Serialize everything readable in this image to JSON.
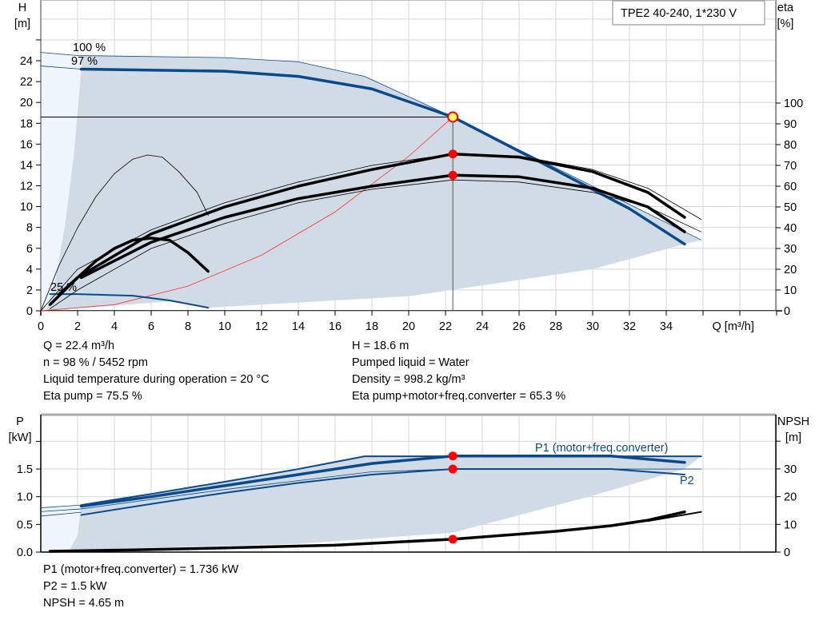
{
  "chart_data": [
    {
      "type": "line",
      "title": "TPE2 40-240, 1*230 V",
      "xlabel": "Q [m³/h]",
      "ylabel": "H\n[m]",
      "y2label": "eta\n[%]",
      "xlim": [
        0,
        40
      ],
      "ylim": [
        0,
        29.8
      ],
      "y2lim": [
        0,
        114.6
      ],
      "xticks": [
        0,
        2,
        4,
        6,
        8,
        10,
        12,
        14,
        16,
        18,
        20,
        22,
        24,
        26,
        28,
        30,
        32,
        34
      ],
      "yticks": [
        0,
        2,
        4,
        6,
        8,
        10,
        12,
        14,
        16,
        18,
        20,
        22,
        24
      ],
      "y2ticks": [
        0,
        10,
        20,
        30,
        40,
        50,
        60,
        70,
        80,
        90,
        100
      ],
      "grid": true,
      "colors": {
        "curve": "#0a4a8a",
        "area": "#d0dbe6",
        "area_light": "#eef5fc",
        "eta": "#000000",
        "system": "#ff3030",
        "point": "#ff0000",
        "op_point": "#ffff66"
      },
      "annotations": [
        "100 %",
        "97 %",
        "25 %"
      ],
      "series": [
        {
          "axis": "H",
          "style": "thin-blue",
          "points": [
            [
              0,
              24.8
            ],
            [
              2,
              24.5
            ],
            [
              10,
              24.3
            ],
            [
              14,
              23.9
            ],
            [
              17.6,
              22.5
            ],
            [
              22.4,
              18.6
            ],
            [
              35.9,
              6.8
            ]
          ]
        },
        {
          "axis": "H",
          "style": "thin-blue",
          "points": [
            [
              0,
              23.5
            ],
            [
              2.2,
              23.2
            ]
          ]
        },
        {
          "axis": "H",
          "style": "thick-blue",
          "points": [
            [
              2.2,
              23.2
            ],
            [
              10,
              23.0
            ],
            [
              14,
              22.5
            ],
            [
              18,
              21.3
            ],
            [
              22.4,
              18.6
            ],
            [
              28,
              13.5
            ],
            [
              32,
              9.8
            ],
            [
              35,
              6.4
            ]
          ]
        },
        {
          "axis": "H",
          "style": "blue",
          "points": [
            [
              0.5,
              1.6
            ],
            [
              2,
              1.6
            ],
            [
              5,
              1.45
            ],
            [
              7,
              1.0
            ],
            [
              9.1,
              0.3
            ]
          ]
        },
        {
          "axis": "eta",
          "style": "thin-black",
          "points": [
            [
              0,
              0
            ],
            [
              1,
              22
            ],
            [
              2,
              40
            ],
            [
              3,
              55
            ],
            [
              4,
              66
            ],
            [
              5,
              73
            ],
            [
              5.8,
              75
            ],
            [
              6.6,
              74
            ],
            [
              7.5,
              67
            ],
            [
              8.5,
              57
            ],
            [
              9.1,
              46
            ]
          ]
        },
        {
          "axis": "eta",
          "style": "thick-black",
          "points": [
            [
              1,
              8
            ],
            [
              2,
              16
            ],
            [
              3,
              24
            ],
            [
              4,
              30
            ],
            [
              5,
              34
            ],
            [
              6,
              35
            ],
            [
              7,
              34
            ],
            [
              8,
              28
            ],
            [
              9.1,
              19
            ]
          ]
        },
        {
          "axis": "eta",
          "style": "thin-black",
          "points": [
            [
              0,
              0
            ],
            [
              2,
              20
            ],
            [
              6,
              39
            ],
            [
              10,
              52
            ],
            [
              14,
              62
            ],
            [
              18,
              70
            ],
            [
              22.4,
              75.5
            ],
            [
              26,
              74.5
            ],
            [
              30,
              68
            ],
            [
              33,
              59
            ],
            [
              35.9,
              44
            ]
          ]
        },
        {
          "axis": "eta",
          "style": "thick-black",
          "points": [
            [
              0.5,
              3
            ],
            [
              2,
              16
            ],
            [
              6,
              37
            ],
            [
              10,
              50
            ],
            [
              14,
              60
            ],
            [
              18,
              68
            ],
            [
              22.4,
              75.5
            ],
            [
              26,
              74
            ],
            [
              30,
              67
            ],
            [
              33,
              57
            ],
            [
              35,
              45
            ]
          ]
        },
        {
          "axis": "eta",
          "style": "thick-black",
          "points": [
            [
              2.2,
              16
            ],
            [
              6,
              33
            ],
            [
              10,
              45
            ],
            [
              14,
              54
            ],
            [
              18,
              60
            ],
            [
              22.4,
              65.3
            ],
            [
              26,
              64.5
            ],
            [
              30,
              59
            ],
            [
              33,
              50
            ],
            [
              35,
              38
            ]
          ]
        },
        {
          "axis": "eta",
          "style": "thin-black",
          "points": [
            [
              0.5,
              1
            ],
            [
              2,
              10
            ],
            [
              6,
              30
            ],
            [
              10,
              42
            ],
            [
              14,
              52
            ],
            [
              18,
              58.5
            ],
            [
              22.4,
              63
            ],
            [
              26,
              62
            ],
            [
              30,
              57
            ],
            [
              33,
              50
            ],
            [
              35.9,
              38
            ]
          ]
        }
      ],
      "system_curve": {
        "points": [
          [
            0,
            0
          ],
          [
            4,
            0.59
          ],
          [
            8,
            2.37
          ],
          [
            12,
            5.34
          ],
          [
            16,
            9.49
          ],
          [
            20,
            14.83
          ],
          [
            22.4,
            18.6
          ]
        ]
      },
      "area_lower": [
        [
          0.3,
          0
        ],
        [
          0.8,
          3
        ],
        [
          1.3,
          8
        ],
        [
          1.8,
          15
        ],
        [
          2.2,
          23.2
        ]
      ],
      "area_bottom": [
        [
          9.1,
          0.3
        ],
        [
          20,
          1.4
        ],
        [
          30,
          4.0
        ],
        [
          35,
          6.4
        ]
      ],
      "operating_point": {
        "Q": 22.4,
        "H": 18.6,
        "eta_pump": 75.5,
        "eta_total": 65.3
      }
    },
    {
      "type": "line",
      "xlabel": "",
      "ylabel": "P\n[kW]",
      "y2label": "NPSH\n[m]",
      "xlim": [
        0,
        40
      ],
      "ylim": [
        0,
        2.5
      ],
      "y2lim": [
        0,
        50
      ],
      "yticks": [
        "0.0",
        "0.5",
        "1.0",
        "1.5"
      ],
      "y2ticks": [
        0,
        10,
        20,
        30
      ],
      "grid": true,
      "legend_labels": [
        "P1 (motor+freq.converter)",
        "P2"
      ],
      "series": [
        {
          "axis": "P",
          "style": "thin-blue",
          "points": [
            [
              0,
              0.8
            ],
            [
              2.2,
              0.85
            ]
          ]
        },
        {
          "axis": "P",
          "style": "blue",
          "points": [
            [
              2.2,
              0.85
            ],
            [
              6,
              1.05
            ],
            [
              10,
              1.27
            ],
            [
              14,
              1.5
            ],
            [
              17.6,
              1.73
            ],
            [
              35.9,
              1.73
            ]
          ]
        },
        {
          "axis": "P",
          "style": "thick-blue",
          "points": [
            [
              2.2,
              0.83
            ],
            [
              6,
              1.0
            ],
            [
              10,
              1.2
            ],
            [
              14,
              1.4
            ],
            [
              18,
              1.6
            ],
            [
              22.4,
              1.736
            ],
            [
              31,
              1.736
            ],
            [
              35,
              1.62
            ]
          ]
        },
        {
          "axis": "P",
          "style": "thin-blue",
          "points": [
            [
              0,
              0.73
            ],
            [
              2.2,
              0.78
            ],
            [
              10,
              1.13
            ],
            [
              18,
              1.45
            ],
            [
              22.4,
              1.5
            ],
            [
              35.9,
              1.5
            ]
          ]
        },
        {
          "axis": "P",
          "style": "thin-blue",
          "points": [
            [
              0,
              0.65
            ],
            [
              2.2,
              0.72
            ]
          ]
        },
        {
          "axis": "P",
          "style": "blue",
          "points": [
            [
              2.2,
              0.67
            ],
            [
              6,
              0.87
            ],
            [
              10,
              1.07
            ],
            [
              14,
              1.25
            ],
            [
              18,
              1.4
            ],
            [
              22.4,
              1.5
            ],
            [
              31,
              1.5
            ],
            [
              35,
              1.4
            ]
          ]
        },
        {
          "axis": "NPSH",
          "style": "thick-black",
          "points": [
            [
              0.5,
              0.3
            ],
            [
              5,
              0.8
            ],
            [
              10,
              1.5
            ],
            [
              16,
              2.5
            ],
            [
              22.4,
              4.65
            ],
            [
              28,
              7.5
            ],
            [
              31,
              9.5
            ],
            [
              33,
              11.5
            ],
            [
              35,
              14.5
            ]
          ]
        },
        {
          "axis": "NPSH",
          "style": "black",
          "points": [
            [
              33,
              11.2
            ],
            [
              35.9,
              14.5
            ]
          ]
        }
      ],
      "area_lower": [
        [
          1.5,
          0
        ],
        [
          2,
          0.3
        ],
        [
          2.5,
          0.6
        ],
        [
          3,
          0.7
        ]
      ],
      "area_bottom": [
        [
          3,
          0.05
        ],
        [
          14,
          0.15
        ],
        [
          22.4,
          0.35
        ],
        [
          30,
          1.02
        ],
        [
          35,
          1.5
        ],
        [
          35.9,
          1.73
        ]
      ],
      "operating_point": {
        "Q": 22.4,
        "P1": 1.736,
        "P2": 1.5,
        "NPSH": 4.65
      }
    }
  ],
  "info": {
    "left": [
      "Q = 22.4 m³/h",
      "n = 98 % / 5452 rpm",
      "Liquid temperature during operation = 20 °C",
      "Eta pump = 75.5 %"
    ],
    "right": [
      "H = 18.6 m",
      "Pumped liquid = Water",
      "Density = 998.2 kg/m³",
      "Eta pump+motor+freq.converter = 65.3 %"
    ],
    "bottom": [
      "P1 (motor+freq.converter) = 1.736 kW",
      "P2 = 1.5 kW",
      "NPSH = 4.65 m"
    ]
  }
}
